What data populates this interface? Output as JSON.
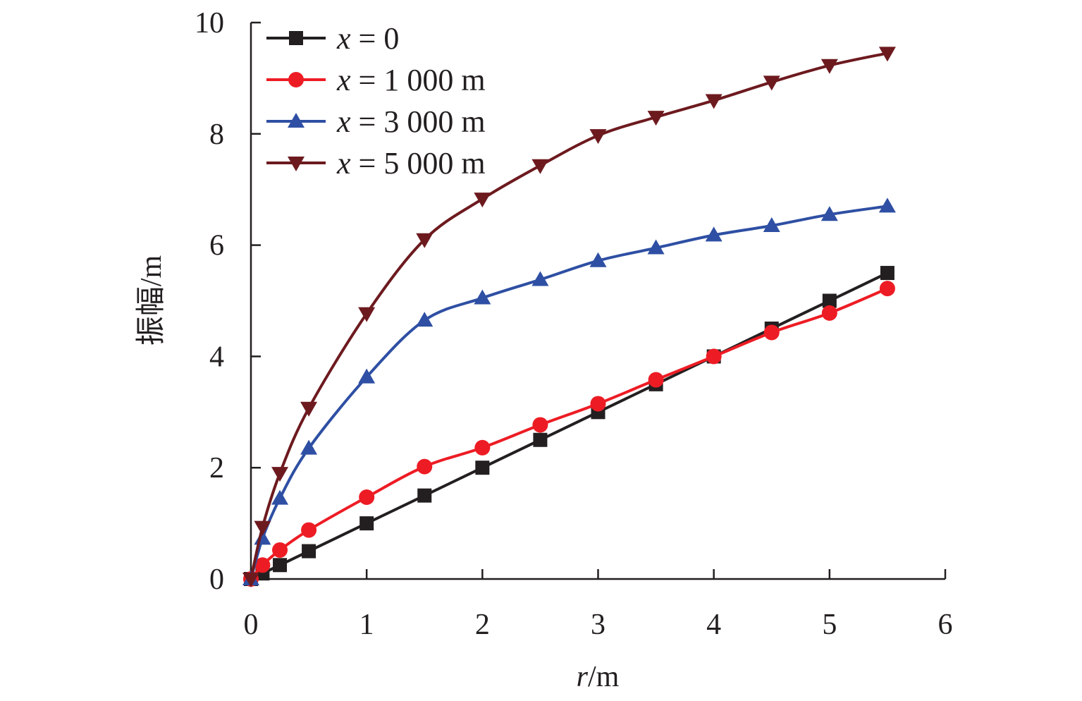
{
  "chart_data": {
    "type": "line",
    "title": "",
    "xlabel_italic": "r",
    "xlabel_unit": "/m",
    "ylabel": "振幅/m",
    "xlim": [
      0,
      6
    ],
    "ylim": [
      0,
      10
    ],
    "xticks": [
      "0",
      "1",
      "2",
      "3",
      "4",
      "5",
      "6"
    ],
    "yticks": [
      "0",
      "2",
      "4",
      "6",
      "8",
      "10"
    ],
    "grid": false,
    "legend_position": "top-left",
    "x": [
      0,
      0.1,
      0.25,
      0.5,
      1,
      1.5,
      2,
      2.5,
      3,
      3.5,
      4,
      4.5,
      5,
      5.5
    ],
    "series": [
      {
        "name_var": "x",
        "name_rest": " = 0",
        "color": "#231f20",
        "marker": "square",
        "values": [
          0,
          0.1,
          0.25,
          0.5,
          1,
          1.5,
          2,
          2.5,
          3,
          3.5,
          4,
          4.5,
          5,
          5.5
        ]
      },
      {
        "name_var": "x",
        "name_rest": " = 1 000 m",
        "color": "#ed1c24",
        "marker": "circle",
        "values": [
          0,
          0.25,
          0.52,
          0.88,
          1.47,
          2.02,
          2.36,
          2.77,
          3.15,
          3.58,
          4.0,
          4.43,
          4.78,
          5.22
        ]
      },
      {
        "name_var": "x",
        "name_rest": " = 3 000 m",
        "color": "#2e4fa3",
        "marker": "triangle-up",
        "values": [
          0,
          0.73,
          1.45,
          2.35,
          3.63,
          4.65,
          5.05,
          5.38,
          5.72,
          5.95,
          6.18,
          6.35,
          6.55,
          6.7
        ]
      },
      {
        "name_var": "x",
        "name_rest": " = 5 000 m",
        "color": "#6d1a1f",
        "marker": "triangle-down",
        "values": [
          0,
          0.93,
          1.9,
          3.07,
          4.77,
          6.1,
          6.83,
          7.43,
          7.97,
          8.3,
          8.6,
          8.93,
          9.23,
          9.45
        ]
      }
    ]
  }
}
